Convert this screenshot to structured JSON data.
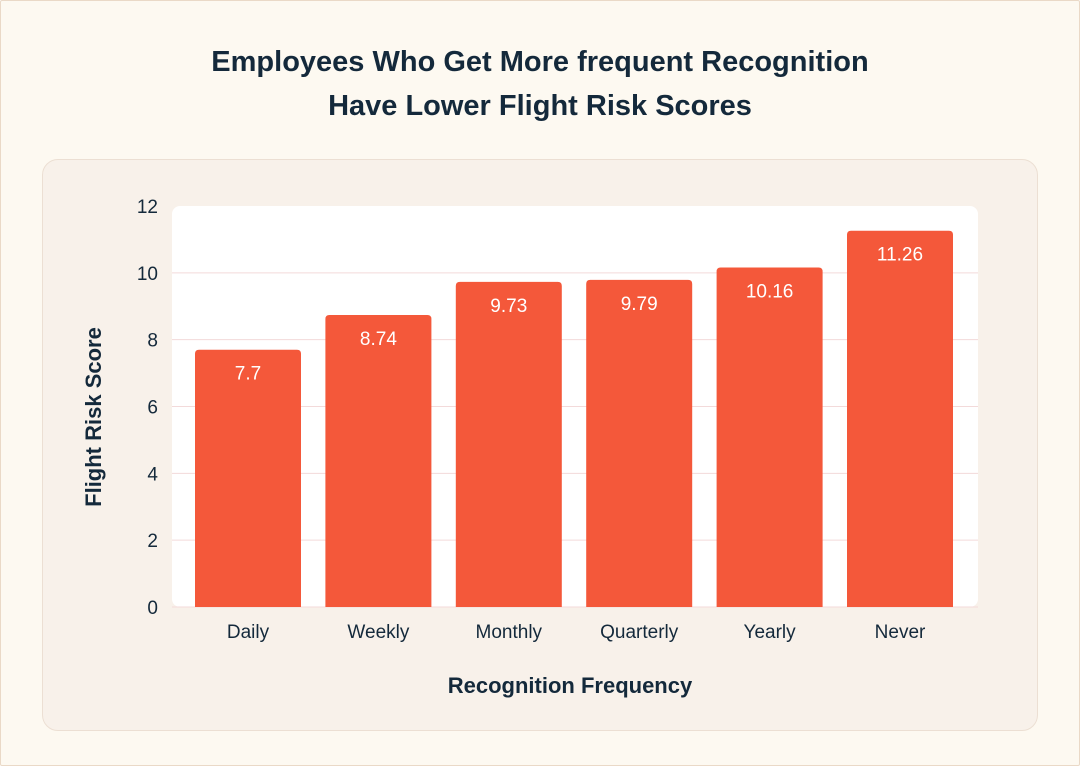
{
  "chart_data": {
    "type": "bar",
    "title": [
      "Employees Who Get More frequent Recognition",
      "Have Lower Flight Risk Scores"
    ],
    "xlabel": "Recognition Frequency",
    "ylabel": "Flight Risk Score",
    "categories": [
      "Daily",
      "Weekly",
      "Monthly",
      "Quarterly",
      "Yearly",
      "Never"
    ],
    "values": [
      7.7,
      8.74,
      9.73,
      9.79,
      10.16,
      11.26
    ],
    "value_labels": [
      "7.7",
      "8.74",
      "9.73",
      "9.79",
      "10.16",
      "11.26"
    ],
    "ylim": [
      0,
      12
    ],
    "yticks": [
      0,
      2,
      4,
      6,
      8,
      10,
      12
    ],
    "grid": true,
    "legend": "none",
    "colors": {
      "bar": "#f4583a",
      "plot_background": "#ffffff",
      "gridline": "#f3dada",
      "text": "#14293b",
      "bar_label": "#ffffff"
    }
  }
}
